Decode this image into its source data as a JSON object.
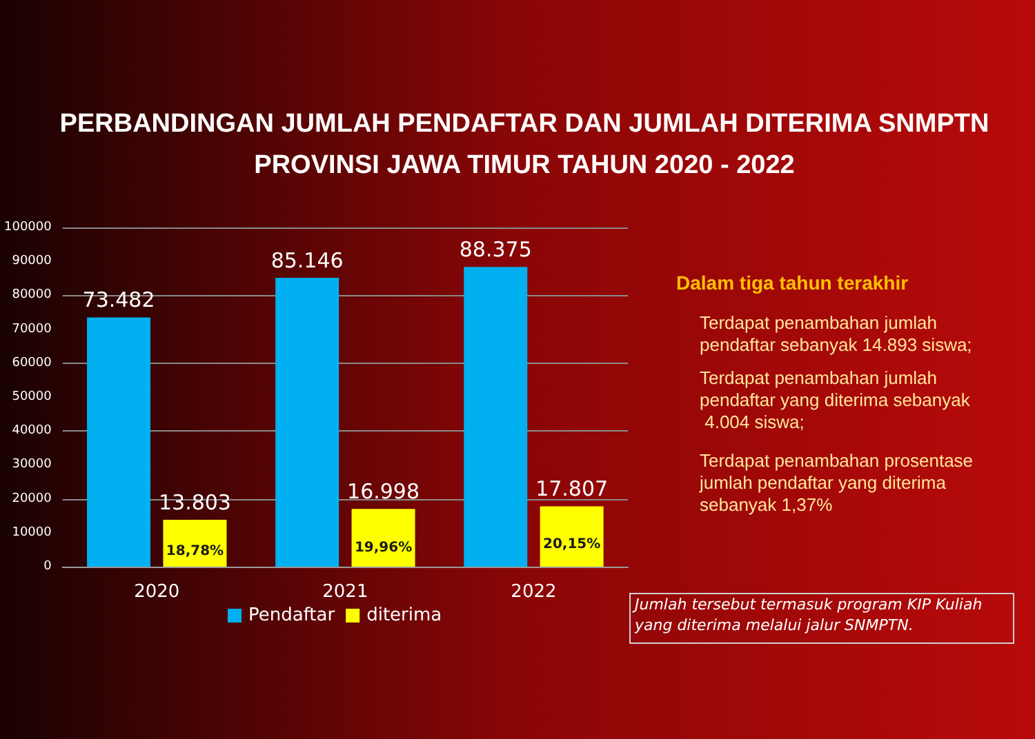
{
  "chart_data": {
    "type": "bar",
    "title": "PERBANDINGAN JUMLAH PENDAFTAR DAN JUMLAH DITERIMA SNMPTN\nPROVINSI JAWA TIMUR TAHUN 2020 - 2022",
    "categories": [
      "2020",
      "2021",
      "2022"
    ],
    "series": [
      {
        "name": "Pendaftar",
        "color": "#00b0f0",
        "values": [
          73482,
          85146,
          88375
        ],
        "value_labels": [
          "73.482",
          "85.146",
          "88.375"
        ]
      },
      {
        "name": "diterima",
        "color": "#ffff00",
        "values": [
          13803,
          16998,
          17807
        ],
        "value_labels": [
          "13.803",
          "16.998",
          "17.807"
        ]
      }
    ],
    "ylim": [
      0,
      100000
    ],
    "yticks": [
      0,
      10000,
      20000,
      30000,
      40000,
      50000,
      60000,
      70000,
      80000,
      90000,
      100000
    ],
    "grid": "y",
    "legend": "bottom",
    "annotations": [
      {
        "text": "18,78%",
        "x": "2020",
        "y": 4500
      },
      {
        "text": "19,96%",
        "x": "2021",
        "y": 5500
      },
      {
        "text": "20,15%",
        "x": "2022",
        "y": 6500
      },
      "Dalam tiga tahun terakhir",
      "Terdapat penambahan jumlah pendaftar sebanyak 14.893 siswa;",
      "Terdapat penambahan jumlah pendaftar yang diterima sebanyak 4.004 siswa;",
      "Terdapat penambahan prosentase jumlah pendaftar yang diterima sebanyak 1,37%",
      "Jumlah tersebut termasuk program KIP Kuliah yang diterima melalui jalur SNMPTN."
    ]
  }
}
